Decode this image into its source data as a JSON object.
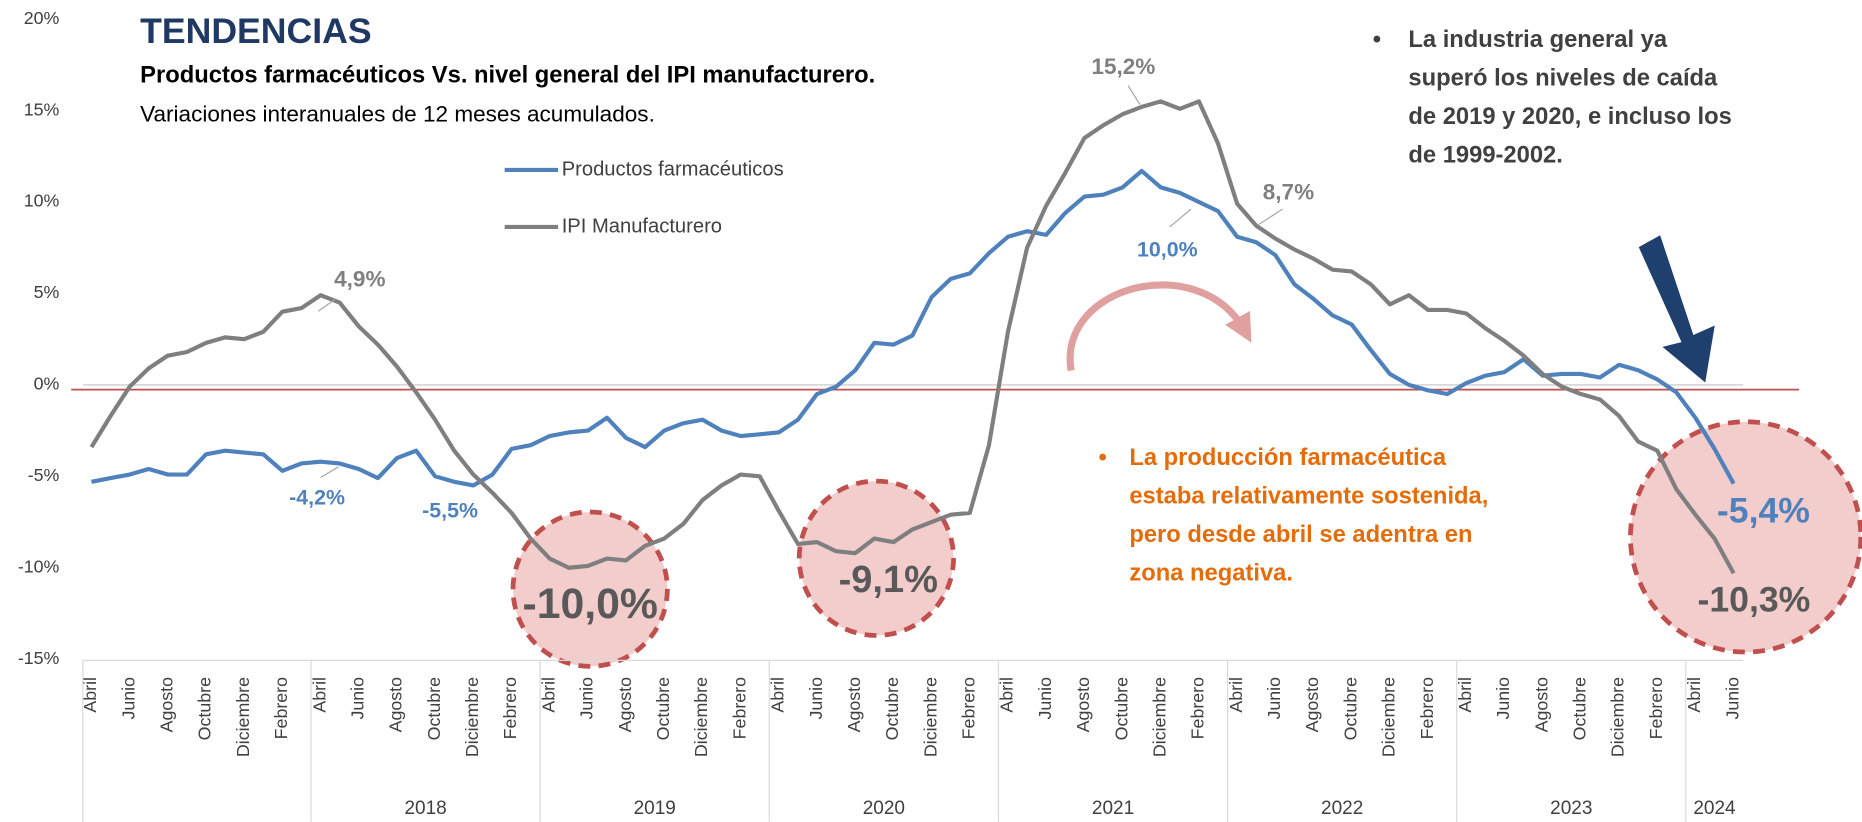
{
  "chart_data": {
    "type": "line",
    "title": "TENDENCIAS",
    "subtitle": "Productos farmacéuticos Vs. nivel general del IPI manufacturero.",
    "note": "Variaciones interanuales de 12 meses acumulados.",
    "annotations": [
      [
        "La industria general ya",
        "superó los niveles de caída",
        "de 2019 y 2020, e incluso los",
        "de 1999-2002."
      ],
      [
        "La producción farmacéutica",
        "estaba relativamente sostenida,",
        "pero desde abril se adentra en",
        "zona negativa."
      ]
    ],
    "categories": [
      "Abril",
      null,
      "Junio",
      null,
      "Agosto",
      null,
      "Octubre",
      null,
      "Diciembre",
      null,
      "Febrero",
      null,
      "Abril",
      null,
      "Junio",
      null,
      "Agosto",
      null,
      "Octubre",
      null,
      "Diciembre",
      null,
      "Febrero",
      null,
      "Abril",
      null,
      "Junio",
      null,
      "Agosto",
      null,
      "Octubre",
      null,
      "Diciembre",
      null,
      "Febrero",
      null,
      "Abril",
      null,
      "Junio",
      null,
      "Agosto",
      null,
      "Octubre",
      null,
      "Diciembre",
      null,
      "Febrero",
      null,
      "Abril",
      null,
      "Junio",
      null,
      "Agosto",
      null,
      "Octubre",
      null,
      "Diciembre",
      null,
      "Febrero",
      null,
      "Abril",
      null,
      "Junio",
      null,
      "Agosto",
      null,
      "Octubre",
      null,
      "Diciembre",
      null,
      "Febrero",
      null,
      "Abril",
      null,
      "Junio",
      null,
      "Agosto",
      null,
      "Octubre",
      null,
      "Diciembre",
      null,
      "Febrero",
      null,
      "Abril",
      null,
      "Junio"
    ],
    "years": [
      "2018",
      "2019",
      "2020",
      "2021",
      "2022",
      "2023",
      "2024"
    ],
    "series": [
      {
        "name": "Productos farmacéuticos",
        "color": "#4f81bd",
        "values": [
          -5.3,
          -5.1,
          -4.9,
          -4.6,
          -4.9,
          -4.9,
          -3.8,
          -3.6,
          -3.7,
          -3.8,
          -4.7,
          -4.3,
          -4.2,
          -4.3,
          -4.6,
          -5.1,
          -4.0,
          -3.6,
          -5.0,
          -5.3,
          -5.5,
          -4.9,
          -3.5,
          -3.3,
          -2.8,
          -2.6,
          -2.5,
          -1.8,
          -2.9,
          -3.4,
          -2.5,
          -2.1,
          -1.9,
          -2.5,
          -2.8,
          -2.7,
          -2.6,
          -1.9,
          -0.5,
          -0.1,
          0.8,
          2.3,
          2.2,
          2.7,
          4.8,
          5.8,
          6.1,
          7.2,
          8.1,
          8.4,
          8.2,
          9.4,
          10.3,
          10.4,
          10.8,
          11.7,
          10.8,
          10.5,
          10.0,
          9.5,
          8.1,
          7.8,
          7.1,
          5.5,
          4.7,
          3.8,
          3.3,
          1.9,
          0.6,
          0.0,
          -0.3,
          -0.5,
          0.1,
          0.5,
          0.7,
          1.4,
          0.5,
          0.6,
          0.6,
          0.4,
          1.1,
          0.8,
          0.3,
          -0.4,
          -1.8,
          -3.5,
          -5.4
        ],
        "value_labels": {
          "12": "-4,2%",
          "20": "-5,5%",
          "58": "10,0%",
          "86": "-5,4%"
        }
      },
      {
        "name": "IPI Manufacturero",
        "color": "#7f7f7f",
        "values": [
          -3.4,
          -1.7,
          -0.1,
          0.9,
          1.6,
          1.8,
          2.3,
          2.6,
          2.5,
          2.9,
          4.0,
          4.2,
          4.9,
          4.5,
          3.2,
          2.2,
          1.0,
          -0.4,
          -1.9,
          -3.6,
          -4.9,
          -5.9,
          -7.0,
          -8.4,
          -9.5,
          -10.0,
          -9.9,
          -9.5,
          -9.6,
          -8.8,
          -8.4,
          -7.6,
          -6.3,
          -5.5,
          -4.9,
          -5.0,
          -6.9,
          -8.7,
          -8.6,
          -9.1,
          -9.2,
          -8.4,
          -8.6,
          -7.9,
          -7.5,
          -7.1,
          -7.0,
          -3.3,
          2.9,
          7.5,
          9.8,
          11.6,
          13.5,
          14.2,
          14.8,
          15.2,
          15.5,
          15.1,
          15.5,
          13.2,
          9.9,
          8.7,
          8.0,
          7.4,
          6.9,
          6.3,
          6.2,
          5.5,
          4.4,
          4.9,
          4.1,
          4.1,
          3.9,
          3.1,
          2.4,
          1.6,
          0.6,
          -0.1,
          -0.5,
          -0.8,
          -1.7,
          -3.1,
          -3.6,
          -5.7,
          -7.1,
          -8.4,
          -10.3
        ],
        "value_labels": {
          "12": "4,9%",
          "25": "-10,0%",
          "39": "-9,1%",
          "55": "15,2%",
          "61": "8,7%",
          "86": "-10,3%"
        }
      }
    ],
    "ylim": [
      -15,
      20
    ],
    "yticks": [
      {
        "value": 20,
        "label": "20%"
      },
      {
        "value": 15,
        "label": "15%"
      },
      {
        "value": 10,
        "label": "10%"
      },
      {
        "value": 5,
        "label": "5%"
      },
      {
        "value": 0,
        "label": "0%"
      },
      {
        "value": -5,
        "label": "-5%"
      },
      {
        "value": -10,
        "label": "-10%"
      },
      {
        "value": -15,
        "label": "-15%"
      }
    ],
    "grid": false
  }
}
